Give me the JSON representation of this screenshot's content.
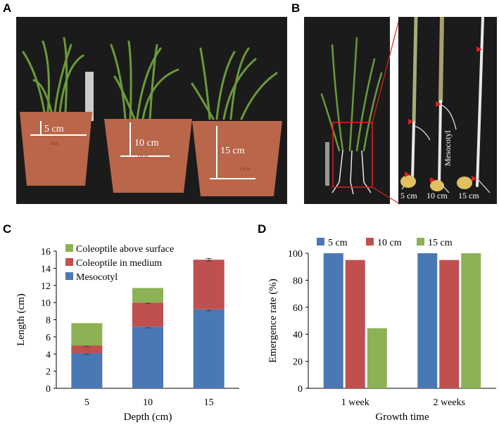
{
  "panels": {
    "A": {
      "letter": "A",
      "labels": [
        "5 cm",
        "10 cm",
        "15 cm"
      ],
      "pot_marks": [
        "5cm",
        "10cm",
        "15cm"
      ]
    },
    "B": {
      "letter": "B",
      "mesocotyl_label": "Mesocotyl",
      "depth_labels": [
        "5 cm",
        "10 cm",
        "15 cm"
      ]
    },
    "C": {
      "letter": "C"
    },
    "D": {
      "letter": "D"
    }
  },
  "colors": {
    "mesocotyl": "#4a78b5",
    "coleoptile_medium": "#c0504d",
    "coleoptile_above": "#8db155",
    "photo_bg": "#1b1b1b",
    "pot": "#b9664a",
    "arrow": "#e02020"
  },
  "chart_data": [
    {
      "id": "C",
      "type": "bar",
      "stacked": true,
      "categories": [
        "5",
        "10",
        "15"
      ],
      "series": [
        {
          "name": "Mesocotyl",
          "values": [
            4.1,
            7.2,
            9.2
          ],
          "errors": [
            0.15,
            0.15,
            0.15
          ],
          "color": "#4a78b5"
        },
        {
          "name": "Coleoptile in medium",
          "values": [
            0.9,
            2.8,
            5.8
          ],
          "errors": [
            0.15,
            0.1,
            0.15
          ],
          "color": "#c0504d"
        },
        {
          "name": "Coleoptile above surface",
          "values": [
            2.6,
            1.7,
            0.0
          ],
          "errors": [
            0,
            0,
            0
          ],
          "color": "#8db155"
        }
      ],
      "legend_order": [
        "Coleoptile above surface",
        "Coleoptile in medium",
        "Mesocotyl"
      ],
      "xlabel": "Depth (cm)",
      "ylabel": "Length  (cm)",
      "ylim": [
        0,
        16
      ],
      "yticks": [
        0,
        2,
        4,
        6,
        8,
        10,
        12,
        14,
        16
      ],
      "grid": false,
      "legend_position": "top-left"
    },
    {
      "id": "D",
      "type": "bar",
      "stacked": false,
      "categories": [
        "1 week",
        "2 weeks"
      ],
      "series": [
        {
          "name": "5 cm",
          "values": [
            100,
            100
          ],
          "color": "#4a78b5"
        },
        {
          "name": "10 cm",
          "values": [
            95,
            95
          ],
          "color": "#c0504d"
        },
        {
          "name": "15 cm",
          "values": [
            44.5,
            100
          ],
          "color": "#8db155"
        }
      ],
      "xlabel": "Growth time",
      "ylabel": "Emergence  rate (%)",
      "ylim": [
        0,
        100
      ],
      "yticks": [
        0,
        20,
        40,
        60,
        80,
        100
      ],
      "grid": false,
      "legend_position": "top"
    }
  ]
}
